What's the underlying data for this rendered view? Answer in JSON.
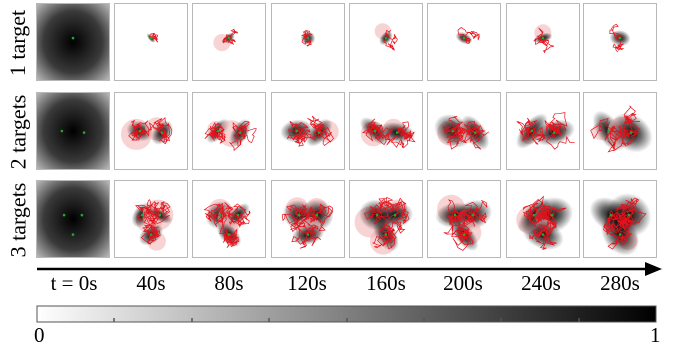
{
  "rows": [
    {
      "label": "1 target",
      "targets": 1
    },
    {
      "label": "2 targets",
      "targets": 2
    },
    {
      "label": "3 targets",
      "targets": 3
    }
  ],
  "time_axis": {
    "ticks": [
      "t = 0s",
      "40s",
      "80s",
      "120s",
      "160s",
      "200s",
      "240s",
      "280s"
    ]
  },
  "colorbar": {
    "min_label": "0",
    "max_label": "1",
    "range": [
      0,
      1
    ]
  },
  "colors": {
    "trajectory": "#e8101a",
    "target_marker": "#1faa2a",
    "heat_high": "#000000",
    "heat_low": "#ffffff",
    "uncertainty_circle": "#f4b6b6"
  }
}
